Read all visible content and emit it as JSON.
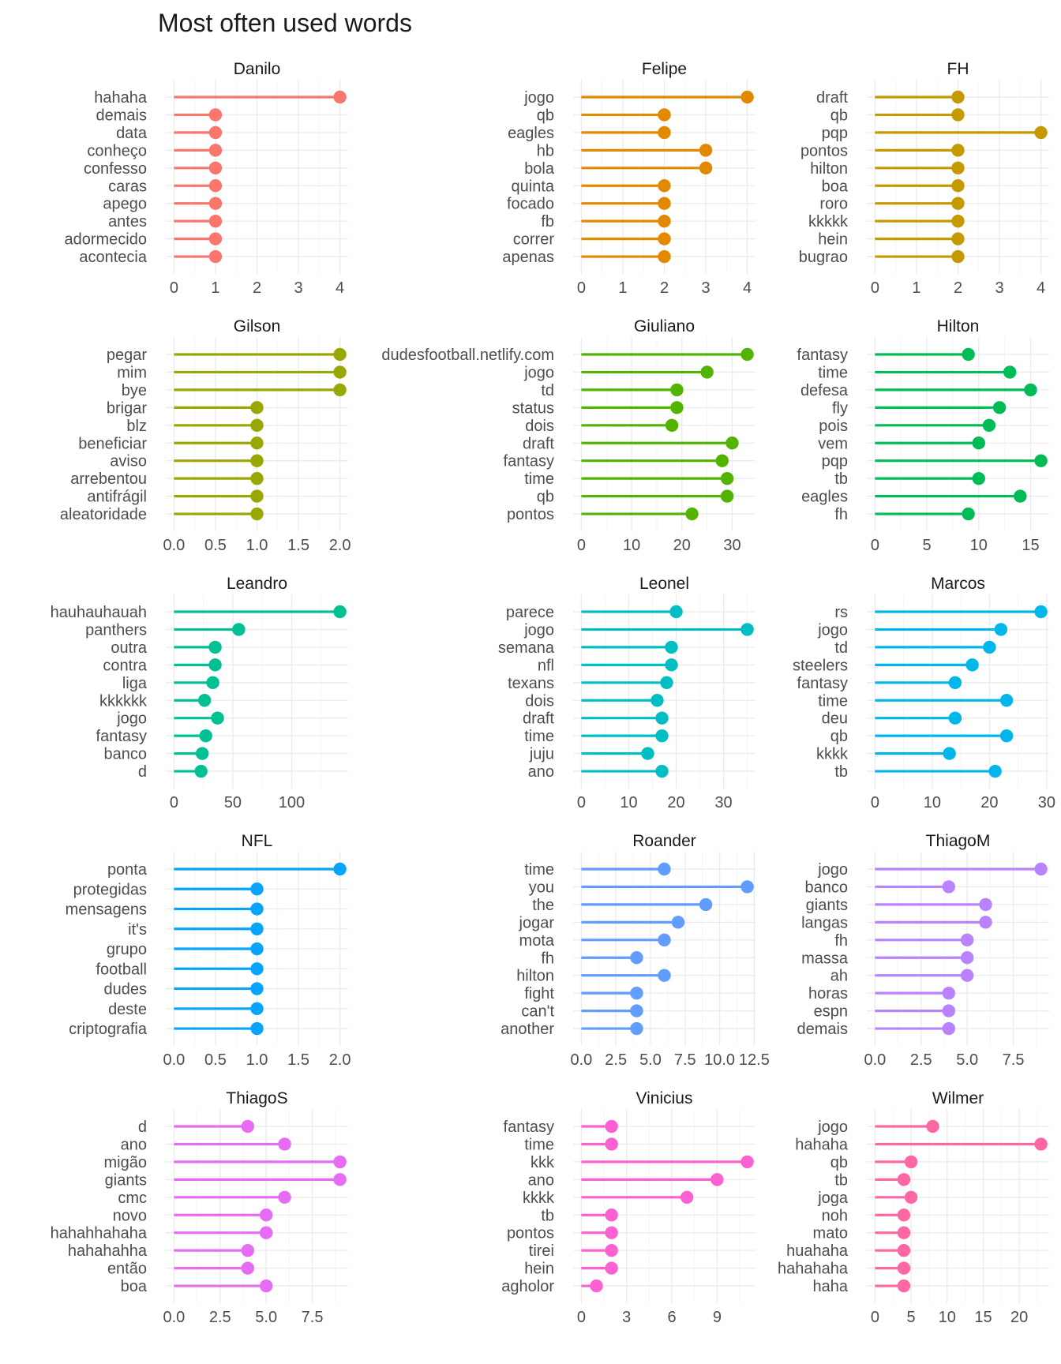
{
  "page": {
    "title": "Most often used words"
  },
  "chart_data": [
    {
      "type": "lollipop",
      "title": "Danilo",
      "color": "#F8766D",
      "xlim": [
        0,
        4
      ],
      "ticks": [
        "0",
        "1",
        "2",
        "3",
        "4"
      ],
      "categories": [
        "hahaha",
        "demais",
        "data",
        "conheço",
        "confesso",
        "caras",
        "apego",
        "antes",
        "adormecido",
        "acontecia"
      ],
      "values": [
        4,
        1,
        1,
        1,
        1,
        1,
        1,
        1,
        1,
        1
      ]
    },
    {
      "type": "lollipop",
      "title": "Felipe",
      "color": "#E38900",
      "xlim": [
        0,
        4
      ],
      "ticks": [
        "0",
        "1",
        "2",
        "3",
        "4"
      ],
      "categories": [
        "jogo",
        "qb",
        "eagles",
        "hb",
        "bola",
        "quinta",
        "focado",
        "fb",
        "correr",
        "apenas"
      ],
      "values": [
        4,
        2,
        2,
        3,
        3,
        2,
        2,
        2,
        2,
        2
      ]
    },
    {
      "type": "lollipop",
      "title": "FH",
      "color": "#C49A00",
      "xlim": [
        0,
        4
      ],
      "ticks": [
        "0",
        "1",
        "2",
        "3",
        "4"
      ],
      "categories": [
        "draft",
        "qb",
        "pqp",
        "pontos",
        "hilton",
        "boa",
        "roro",
        "kkkkk",
        "hein",
        "bugrao"
      ],
      "values": [
        2,
        2,
        4,
        2,
        2,
        2,
        2,
        2,
        2,
        2
      ]
    },
    {
      "type": "lollipop",
      "title": "Gilson",
      "color": "#99A800",
      "xlim": [
        0,
        2
      ],
      "ticks": [
        "0.0",
        "0.5",
        "1.0",
        "1.5",
        "2.0"
      ],
      "categories": [
        "pegar",
        "mim",
        "bye",
        "brigar",
        "blz",
        "beneficiar",
        "aviso",
        "arrebentou",
        "antifrágil",
        "aleatoridade"
      ],
      "values": [
        2,
        2,
        2,
        1,
        1,
        1,
        1,
        1,
        1,
        1
      ]
    },
    {
      "type": "lollipop",
      "title": "Giuliano",
      "color": "#53B400",
      "xlim": [
        0,
        33
      ],
      "ticks": [
        "0",
        "10",
        "20",
        "30"
      ],
      "categories": [
        "dudesfootball.netlify.com",
        "jogo",
        "td",
        "status",
        "dois",
        "draft",
        "fantasy",
        "time",
        "qb",
        "pontos"
      ],
      "values": [
        33,
        25,
        19,
        19,
        18,
        30,
        28,
        29,
        29,
        22
      ]
    },
    {
      "type": "lollipop",
      "title": "Hilton",
      "color": "#00BC56",
      "xlim": [
        0,
        16
      ],
      "ticks": [
        "0",
        "5",
        "10",
        "15"
      ],
      "categories": [
        "fantasy",
        "time",
        "defesa",
        "fly",
        "pois",
        "vem",
        "pqp",
        "tb",
        "eagles",
        "fh"
      ],
      "values": [
        9,
        13,
        15,
        12,
        11,
        10,
        16,
        10,
        14,
        9
      ]
    },
    {
      "type": "lollipop",
      "title": "Leandro",
      "color": "#00C094",
      "xlim": [
        0,
        141
      ],
      "ticks": [
        "0",
        "50",
        "100"
      ],
      "categories": [
        "hauhauhauah",
        "panthers",
        "outra",
        "contra",
        "liga",
        "kkkkkk",
        "jogo",
        "fantasy",
        "banco",
        "d"
      ],
      "values": [
        141,
        55,
        35,
        35,
        33,
        26,
        37,
        27,
        24,
        23
      ]
    },
    {
      "type": "lollipop",
      "title": "Leonel",
      "color": "#00BFC4",
      "xlim": [
        0,
        35
      ],
      "ticks": [
        "0",
        "10",
        "20",
        "30"
      ],
      "categories": [
        "parece",
        "jogo",
        "semana",
        "nfl",
        "texans",
        "dois",
        "draft",
        "time",
        "juju",
        "ano"
      ],
      "values": [
        20,
        35,
        19,
        19,
        18,
        16,
        17,
        17,
        14,
        17
      ]
    },
    {
      "type": "lollipop",
      "title": "Marcos",
      "color": "#00B6EB",
      "xlim": [
        0,
        29
      ],
      "ticks": [
        "0",
        "10",
        "20",
        "30"
      ],
      "categories": [
        "rs",
        "jogo",
        "td",
        "steelers",
        "fantasy",
        "time",
        "deu",
        "qb",
        "kkkk",
        "tb"
      ],
      "values": [
        29,
        22,
        20,
        17,
        14,
        23,
        14,
        23,
        13,
        21
      ]
    },
    {
      "type": "lollipop",
      "title": "NFL",
      "color": "#06A4FF",
      "xlim": [
        0,
        2
      ],
      "ticks": [
        "0.0",
        "0.5",
        "1.0",
        "1.5",
        "2.0"
      ],
      "categories": [
        "ponta",
        "protegidas",
        "mensagens",
        "it's",
        "grupo",
        "football",
        "dudes",
        "deste",
        "criptografia"
      ],
      "values": [
        2,
        1,
        1,
        1,
        1,
        1,
        1,
        1,
        1
      ]
    },
    {
      "type": "lollipop",
      "title": "Roander",
      "color": "#619CFF",
      "xlim": [
        0,
        12
      ],
      "ticks": [
        "0.0",
        "2.5",
        "5.0",
        "7.5",
        "10.0",
        "12.5"
      ],
      "categories": [
        "time",
        "you",
        "the",
        "jogar",
        "mota",
        "fh",
        "hilton",
        "fight",
        "can't",
        "another"
      ],
      "values": [
        6,
        12,
        9,
        7,
        6,
        4,
        6,
        4,
        4,
        4
      ]
    },
    {
      "type": "lollipop",
      "title": "ThiagoM",
      "color": "#B983FF",
      "xlim": [
        0,
        9
      ],
      "ticks": [
        "0.0",
        "2.5",
        "5.0",
        "7.5"
      ],
      "categories": [
        "jogo",
        "banco",
        "giants",
        "langas",
        "fh",
        "massa",
        "ah",
        "horas",
        "espn",
        "demais"
      ],
      "values": [
        9,
        4,
        6,
        6,
        5,
        5,
        5,
        4,
        4,
        4
      ]
    },
    {
      "type": "lollipop",
      "title": "ThiagoS",
      "color": "#E76BF3",
      "xlim": [
        0,
        9
      ],
      "ticks": [
        "0.0",
        "2.5",
        "5.0",
        "7.5"
      ],
      "categories": [
        "d",
        "ano",
        "migão",
        "giants",
        "cmc",
        "novo",
        "hahahhahaha",
        "hahahahha",
        "então",
        "boa"
      ],
      "values": [
        4,
        6,
        9,
        9,
        6,
        5,
        5,
        4,
        4,
        5
      ]
    },
    {
      "type": "lollipop",
      "title": "Vinicius",
      "color": "#FD61D1",
      "xlim": [
        0,
        11
      ],
      "ticks": [
        "0",
        "3",
        "6",
        "9"
      ],
      "categories": [
        "fantasy",
        "time",
        "kkk",
        "ano",
        "kkkk",
        "tb",
        "pontos",
        "tirei",
        "hein",
        "agholor"
      ],
      "values": [
        2,
        2,
        11,
        9,
        7,
        2,
        2,
        2,
        2,
        1
      ]
    },
    {
      "type": "lollipop",
      "title": "Wilmer",
      "color": "#FF67A4",
      "xlim": [
        0,
        23
      ],
      "ticks": [
        "0",
        "5",
        "10",
        "15",
        "20"
      ],
      "categories": [
        "jogo",
        "hahaha",
        "qb",
        "tb",
        "joga",
        "noh",
        "mato",
        "huahaha",
        "hahahaha",
        "haha"
      ],
      "values": [
        8,
        23,
        5,
        4,
        5,
        4,
        4,
        4,
        4,
        4
      ]
    }
  ]
}
